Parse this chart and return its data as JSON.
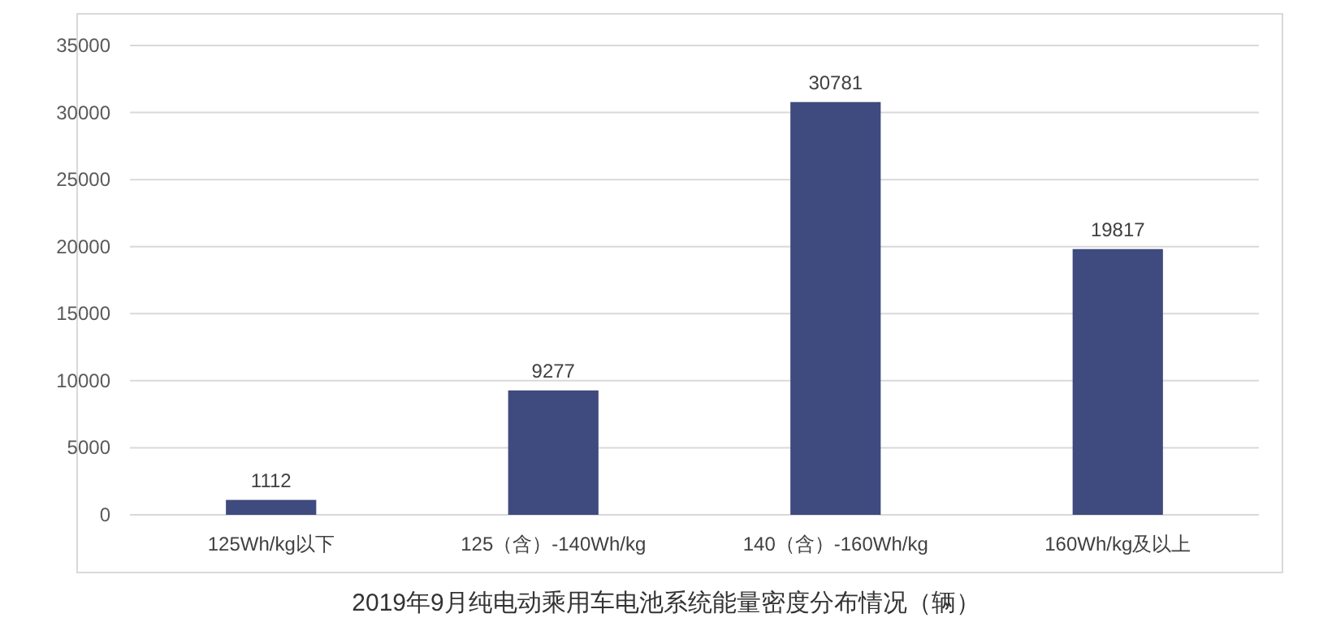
{
  "chart_data": {
    "type": "bar",
    "title": "2019年9月纯电动乘用车电池系统能量密度分布情况（辆）",
    "categories": [
      "125Wh/kg以下",
      "125（含）-140Wh/kg",
      "140（含）-160Wh/kg",
      "160Wh/kg及以上"
    ],
    "values": [
      1112,
      9277,
      30781,
      19817
    ],
    "color": "#3f4a7e",
    "ylim": [
      0,
      35000
    ],
    "yticks": [
      0,
      5000,
      10000,
      15000,
      20000,
      25000,
      30000,
      35000
    ],
    "grid": "y",
    "data_labels": true
  }
}
